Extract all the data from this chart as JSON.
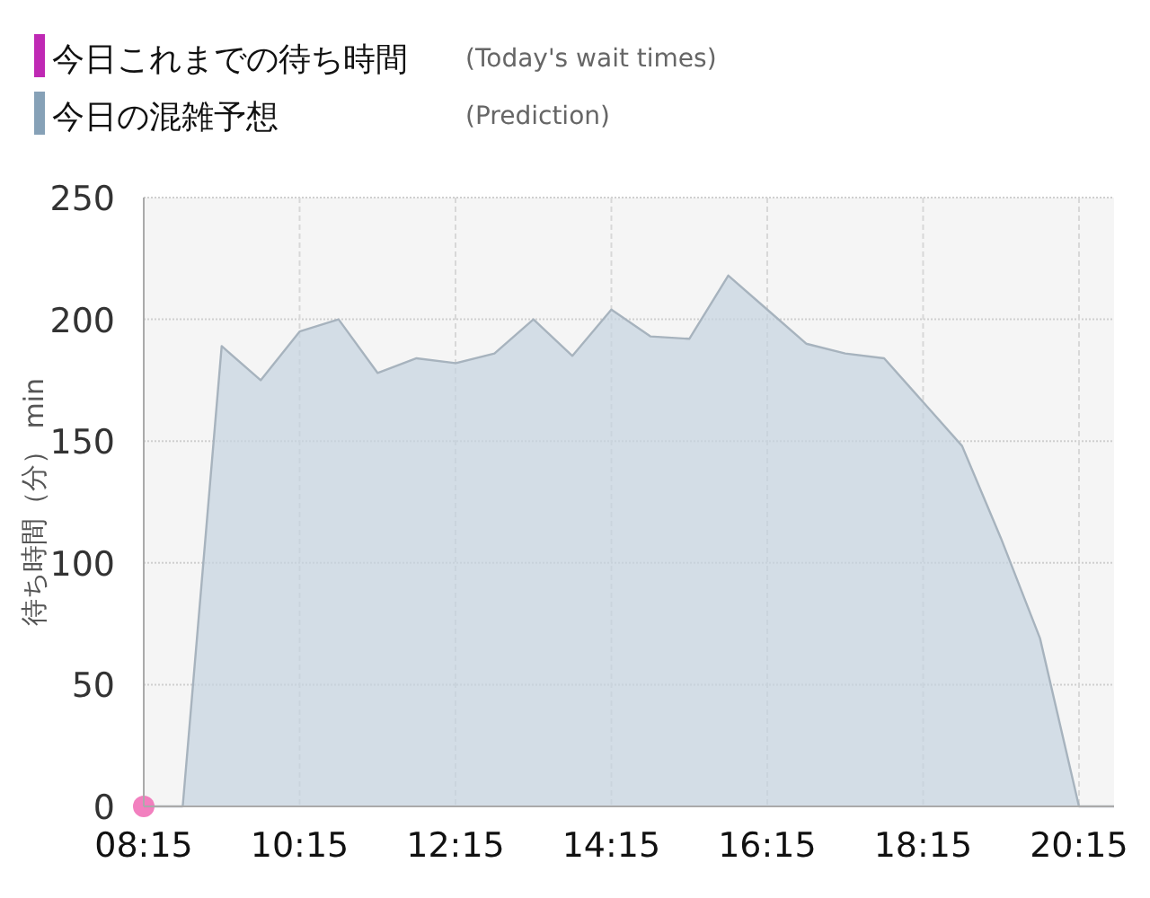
{
  "chart_data": {
    "type": "area",
    "ylabel": "待ち時間（分） min",
    "x": [
      8.25,
      8.75,
      9.25,
      9.75,
      10.25,
      10.75,
      11.25,
      11.75,
      12.25,
      12.75,
      13.25,
      13.75,
      14.25,
      14.75,
      15.25,
      15.75,
      16.25,
      16.75,
      17.25,
      17.75,
      18.25,
      18.75,
      19.25,
      19.75,
      20.25,
      20.7
    ],
    "series": [
      {
        "name": "今日これまでの待ち時間",
        "type": "scatter",
        "color": "#f06ab4",
        "x": [
          8.25
        ],
        "values": [
          0
        ]
      },
      {
        "name": "今日の混雑予想",
        "color": "#c5d3df",
        "values": [
          0,
          0,
          189,
          175,
          195,
          200,
          178,
          184,
          182,
          186,
          200,
          185,
          204,
          193,
          192,
          218,
          204,
          190,
          186,
          184,
          166,
          148,
          110,
          69,
          0,
          0
        ]
      }
    ],
    "annotations": [
      "(Today's wait times)",
      "(Prediction)"
    ],
    "xlim": [
      8.25,
      20.7
    ],
    "xticks": [
      {
        "value": 8.25,
        "label": "08:15"
      },
      {
        "value": 10.25,
        "label": "10:15"
      },
      {
        "value": 12.25,
        "label": "12:15"
      },
      {
        "value": 14.25,
        "label": "14:15"
      },
      {
        "value": 16.25,
        "label": "16:15"
      },
      {
        "value": 18.25,
        "label": "18:15"
      },
      {
        "value": 20.25,
        "label": "20:15"
      }
    ],
    "ylim": [
      0,
      250
    ],
    "yticks": [
      0,
      50,
      100,
      150,
      200,
      250
    ],
    "grid": true,
    "legend": "top left"
  }
}
